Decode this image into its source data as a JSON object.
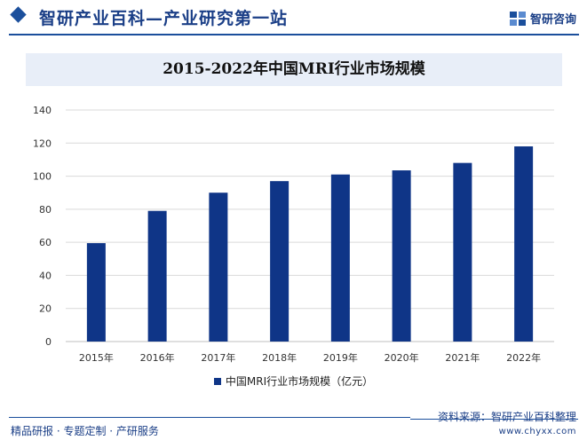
{
  "header": {
    "title": "智研产业百科—产业研究第一站",
    "brand_name": "智研咨询"
  },
  "colors": {
    "primary": "#1b4f9c",
    "bar": "#0f3587",
    "title_bar_bg": "#e8eef8",
    "grid": "#d9d9d9"
  },
  "chart_data": {
    "type": "bar",
    "title": "2015-2022年中国MRI行业市场规模",
    "categories": [
      "2015年",
      "2016年",
      "2017年",
      "2018年",
      "2019年",
      "2020年",
      "2021年",
      "2022年"
    ],
    "series": [
      {
        "name": "中国MRI行业市场规模（亿元）",
        "values": [
          59.5,
          79.0,
          90.0,
          97.0,
          101.0,
          103.5,
          108.0,
          118.0
        ]
      }
    ],
    "ylim": [
      0,
      140
    ],
    "yticks": [
      0,
      20,
      40,
      60,
      80,
      100,
      120,
      140
    ],
    "grid": true,
    "legend_position": "bottom"
  },
  "footer": {
    "source": "资料来源：智研产业百科整理",
    "slogan": "精品研报 · 专题定制 · 产研服务",
    "url": "www.chyxx.com"
  }
}
